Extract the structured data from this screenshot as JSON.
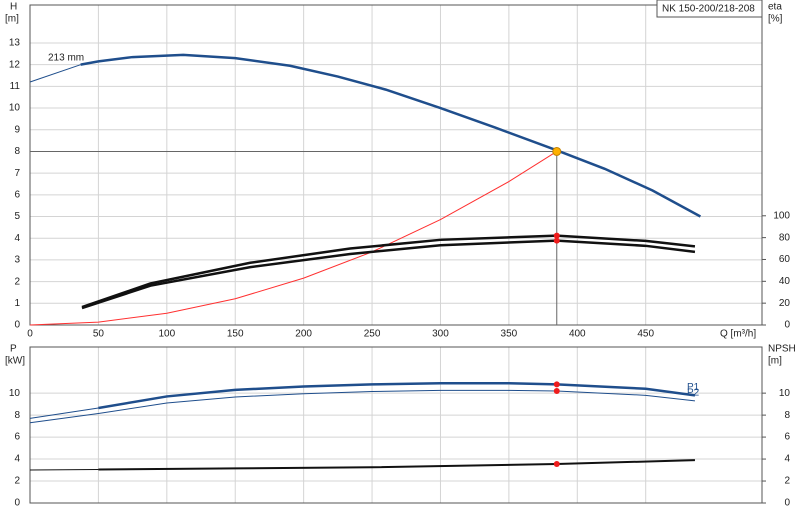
{
  "chart_data": [
    {
      "type": "line",
      "title": "NK 150-200/218-208",
      "annotation": "213 mm",
      "x_label": "Q [m³/h]",
      "y_label": "H",
      "y_unit": "[m]",
      "y2_label": "eta",
      "y2_unit": "[%]",
      "xlim": [
        0,
        535
      ],
      "xticks": [
        0,
        50,
        100,
        150,
        200,
        250,
        300,
        350,
        400,
        450
      ],
      "ylim": [
        0,
        14.75
      ],
      "yticks": [
        0,
        1,
        2,
        3,
        4,
        5,
        6,
        7,
        8,
        9,
        10,
        11,
        12,
        13
      ],
      "y2lim": [
        0,
        293
      ],
      "y2ticks": [
        0,
        20,
        40,
        60,
        80,
        100
      ],
      "grid": true,
      "series": [
        {
          "color": "#1f4e8c",
          "line_width": 1,
          "x": [
            0,
            37
          ],
          "values": [
            11.2,
            12.0
          ]
        },
        {
          "color": "#1f4e8c",
          "line_width": 2.5,
          "x": [
            37,
            50,
            75,
            112,
            150,
            190,
            225,
            260,
            300,
            340,
            385,
            420,
            455,
            490
          ],
          "values": [
            12.0,
            12.15,
            12.35,
            12.45,
            12.3,
            11.95,
            11.45,
            10.85,
            10.0,
            9.1,
            8.05,
            7.2,
            6.2,
            5.0
          ]
        },
        {
          "color": "#ff3030",
          "line_width": 1,
          "x": [
            0,
            50,
            100,
            150,
            200,
            250,
            300,
            350,
            385
          ],
          "values": [
            0,
            0.135,
            0.54,
            1.21,
            2.16,
            3.37,
            4.86,
            6.61,
            8.0
          ]
        },
        {
          "color": "#111111",
          "line_width": 2.5,
          "axis": "y2",
          "x": [
            38,
            88,
            161,
            234,
            300,
            385,
            450,
            486
          ],
          "values": [
            16.4,
            38,
            57,
            70,
            78,
            81.8,
            77,
            72
          ]
        },
        {
          "color": "#111111",
          "line_width": 2.5,
          "axis": "y2",
          "x": [
            38,
            88,
            161,
            234,
            300,
            385,
            450,
            486
          ],
          "values": [
            15.5,
            36,
            53,
            65,
            73,
            77.3,
            72.5,
            67
          ]
        }
      ],
      "markers": [
        {
          "color": "#ffb000",
          "x": 385,
          "value": 8.0,
          "guides": true
        },
        {
          "color": "#ee1c1c",
          "x": 385,
          "value": 81.8,
          "axis": "y2"
        },
        {
          "color": "#ee1c1c",
          "x": 385,
          "value": 77.3,
          "axis": "y2"
        }
      ]
    },
    {
      "type": "line",
      "y_label": "P",
      "y_unit": "[kW]",
      "y2_label": "NPSH",
      "y2_unit": "[m]",
      "xlim": [
        0,
        535
      ],
      "xticks": [
        0,
        50,
        100,
        150,
        200,
        250,
        300,
        350,
        400,
        450
      ],
      "show_xtick_labels": false,
      "ylim": [
        0,
        14.2
      ],
      "yticks": [
        0,
        2,
        4,
        6,
        8,
        10
      ],
      "y2lim": [
        0,
        14.2
      ],
      "y2ticks": [
        0,
        2,
        4,
        6,
        8,
        10
      ],
      "grid": true,
      "series": [
        {
          "color": "#1f4e8c",
          "line_width": 1,
          "x": [
            0,
            50
          ],
          "values": [
            7.7,
            8.65
          ]
        },
        {
          "name": "P1",
          "color": "#1f4e8c",
          "line_width": 2.5,
          "x": [
            50,
            100,
            150,
            200,
            250,
            300,
            350,
            385,
            450,
            486
          ],
          "values": [
            8.65,
            9.7,
            10.3,
            10.6,
            10.8,
            10.9,
            10.9,
            10.8,
            10.4,
            9.8
          ]
        },
        {
          "name": "P2",
          "color": "#1f4e8c",
          "line_width": 1,
          "x": [
            0,
            50,
            100,
            150,
            200,
            250,
            300,
            350,
            385,
            450,
            486
          ],
          "values": [
            7.3,
            8.15,
            9.1,
            9.65,
            9.95,
            10.15,
            10.25,
            10.25,
            10.2,
            9.8,
            9.3
          ]
        },
        {
          "color": "#111111",
          "line_width": 1,
          "axis": "y2",
          "x": [
            0,
            50
          ],
          "values": [
            3.0,
            3.05
          ]
        },
        {
          "color": "#111111",
          "line_width": 2,
          "axis": "y2",
          "x": [
            50,
            150,
            250,
            385,
            486
          ],
          "values": [
            3.05,
            3.15,
            3.25,
            3.55,
            3.9
          ]
        }
      ],
      "markers": [
        {
          "color": "#ee1c1c",
          "x": 385,
          "value": 10.8
        },
        {
          "color": "#ee1c1c",
          "x": 385,
          "value": 10.2
        },
        {
          "color": "#ee1c1c",
          "x": 385,
          "value": 3.55,
          "axis": "y2"
        }
      ]
    }
  ]
}
